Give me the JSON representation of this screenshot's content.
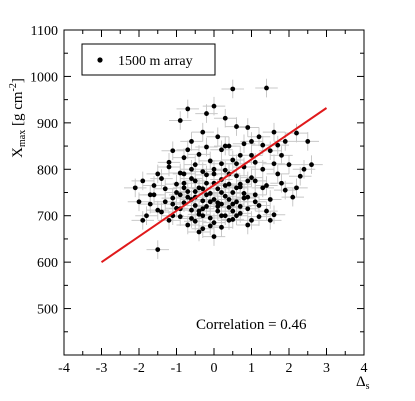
{
  "chart_data": {
    "type": "scatter",
    "title": "",
    "xlabel_main": "Δ",
    "xlabel_sub": "s",
    "ylabel_main": "X",
    "ylabel_sub": "max",
    "ylabel_unit_pre": " [g cm",
    "ylabel_unit_sup": "-2",
    "ylabel_unit_post": "]",
    "xlim": [
      -4,
      4
    ],
    "ylim": [
      400,
      1100
    ],
    "xticks": [
      -4,
      -3,
      -2,
      -1,
      0,
      1,
      2,
      3,
      4
    ],
    "yticks": [
      500,
      600,
      700,
      800,
      900,
      1000,
      1100
    ],
    "grid": false,
    "legend": {
      "label": "1500 m array",
      "placement": "top-left"
    },
    "annotation": "Correlation = 0.46",
    "fit_line": {
      "x": [
        -3,
        3
      ],
      "y": [
        600,
        932
      ],
      "color": "#e0191b"
    },
    "point_color": "#000000",
    "error_color": "#c8c8c8",
    "x_error": 0.3,
    "y_error": 20,
    "points": [
      [
        0.5,
        973
      ],
      [
        1.4,
        975
      ],
      [
        -0.7,
        930
      ],
      [
        0.0,
        936
      ],
      [
        -0.2,
        920
      ],
      [
        0.3,
        910
      ],
      [
        1.6,
        880
      ],
      [
        2.2,
        878
      ],
      [
        1.9,
        860
      ],
      [
        -1.5,
        627
      ],
      [
        2.3,
        785
      ],
      [
        -0.4,
        665
      ],
      [
        0.0,
        655
      ],
      [
        -2.0,
        730
      ],
      [
        2.5,
        860
      ],
      [
        0.9,
        890
      ],
      [
        -0.9,
        905
      ],
      [
        0.6,
        892
      ],
      [
        1.2,
        870
      ],
      [
        1.0,
        860
      ],
      [
        0.1,
        870
      ],
      [
        -0.3,
        880
      ],
      [
        0.4,
        850
      ],
      [
        -0.6,
        860
      ],
      [
        1.5,
        840
      ],
      [
        0.7,
        830
      ],
      [
        -1.1,
        840
      ],
      [
        0.2,
        842
      ],
      [
        1.8,
        830
      ],
      [
        -0.8,
        825
      ],
      [
        1.1,
        815
      ],
      [
        0.5,
        820
      ],
      [
        -0.1,
        818
      ],
      [
        -0.5,
        810
      ],
      [
        0.8,
        805
      ],
      [
        1.3,
        800
      ],
      [
        -1.2,
        805
      ],
      [
        2.0,
        810
      ],
      [
        0.3,
        798
      ],
      [
        -0.3,
        795
      ],
      [
        -0.9,
        792
      ],
      [
        0.0,
        790
      ],
      [
        0.6,
        786
      ],
      [
        1.7,
        790
      ],
      [
        -1.5,
        790
      ],
      [
        1.0,
        782
      ],
      [
        -0.6,
        780
      ],
      [
        0.2,
        778
      ],
      [
        -1.9,
        775
      ],
      [
        0.9,
        775
      ],
      [
        -0.2,
        770
      ],
      [
        0.4,
        768
      ],
      [
        -1.0,
        768
      ],
      [
        1.4,
        765
      ],
      [
        0.7,
        762
      ],
      [
        -0.4,
        760
      ],
      [
        0.1,
        758
      ],
      [
        -1.3,
        758
      ],
      [
        1.9,
        755
      ],
      [
        -0.7,
        752
      ],
      [
        0.5,
        750
      ],
      [
        -0.1,
        748
      ],
      [
        1.1,
        745
      ],
      [
        -1.6,
        745
      ],
      [
        0.3,
        742
      ],
      [
        -0.5,
        740
      ],
      [
        0.8,
        738
      ],
      [
        -1.1,
        738
      ],
      [
        0.0,
        735
      ],
      [
        1.5,
        735
      ],
      [
        -0.3,
        732
      ],
      [
        0.6,
        730
      ],
      [
        -0.8,
        728
      ],
      [
        -1.7,
        725
      ],
      [
        0.2,
        725
      ],
      [
        1.2,
        722
      ],
      [
        -0.2,
        720
      ],
      [
        0.4,
        718
      ],
      [
        -1.0,
        716
      ],
      [
        0.9,
        715
      ],
      [
        -0.6,
        712
      ],
      [
        0.1,
        710
      ],
      [
        -1.4,
        708
      ],
      [
        0.7,
        705
      ],
      [
        -0.4,
        703
      ],
      [
        1.6,
        702
      ],
      [
        0.3,
        700
      ],
      [
        -0.9,
        698
      ],
      [
        -0.1,
        695
      ],
      [
        0.5,
        692
      ],
      [
        -1.2,
        690
      ],
      [
        -0.5,
        688
      ],
      [
        0.0,
        685
      ],
      [
        1.0,
        690
      ],
      [
        -0.7,
        680
      ],
      [
        -1.8,
        700
      ],
      [
        0.2,
        675
      ],
      [
        -0.3,
        672
      ],
      [
        0.6,
        700
      ],
      [
        -1.5,
        712
      ],
      [
        -0.8,
        760
      ],
      [
        -0.2,
        745
      ],
      [
        0.4,
        735
      ],
      [
        -0.5,
        722
      ],
      [
        0.1,
        728
      ],
      [
        -1.1,
        725
      ],
      [
        0.8,
        748
      ],
      [
        -0.4,
        710
      ],
      [
        0.3,
        765
      ],
      [
        -0.7,
        740
      ],
      [
        0.0,
        770
      ],
      [
        -0.9,
        745
      ],
      [
        0.5,
        725
      ],
      [
        -0.3,
        758
      ],
      [
        1.3,
        760
      ],
      [
        -1.3,
        730
      ],
      [
        0.6,
        760
      ],
      [
        -0.6,
        735
      ],
      [
        0.2,
        750
      ],
      [
        -0.1,
        730
      ],
      [
        0.9,
        740
      ],
      [
        -1.0,
        750
      ],
      [
        0.4,
        790
      ],
      [
        -0.2,
        788
      ],
      [
        1.1,
        775
      ],
      [
        -0.8,
        770
      ],
      [
        0.7,
        720
      ],
      [
        -0.5,
        775
      ],
      [
        1.8,
        770
      ],
      [
        -1.6,
        765
      ],
      [
        2.1,
        740
      ],
      [
        -2.1,
        760
      ],
      [
        2.4,
        800
      ],
      [
        -1.9,
        690
      ],
      [
        1.4,
        710
      ],
      [
        -1.4,
        780
      ],
      [
        0.2,
        812
      ],
      [
        -0.6,
        800
      ],
      [
        0.6,
        812
      ],
      [
        1.6,
        812
      ],
      [
        -1.2,
        815
      ],
      [
        0.0,
        800
      ],
      [
        -0.4,
        832
      ],
      [
        1.0,
        830
      ],
      [
        0.3,
        850
      ],
      [
        -0.7,
        842
      ],
      [
        1.3,
        852
      ],
      [
        0.8,
        855
      ],
      [
        -0.2,
        848
      ],
      [
        1.7,
        852
      ],
      [
        0.1,
        720
      ],
      [
        -0.9,
        715
      ],
      [
        0.5,
        710
      ],
      [
        -0.3,
        700
      ],
      [
        1.2,
        698
      ],
      [
        -1.1,
        700
      ],
      [
        0.4,
        690
      ],
      [
        -0.6,
        694
      ],
      [
        0.9,
        680
      ],
      [
        -0.1,
        678
      ],
      [
        1.5,
        690
      ],
      [
        -1.7,
        745
      ],
      [
        2.2,
        760
      ],
      [
        2.6,
        810
      ],
      [
        -0.5,
        752
      ],
      [
        0.7,
        768
      ],
      [
        -0.8,
        790
      ],
      [
        0.2,
        700
      ],
      [
        1.1,
        730
      ],
      [
        -0.3,
        715
      ]
    ]
  }
}
